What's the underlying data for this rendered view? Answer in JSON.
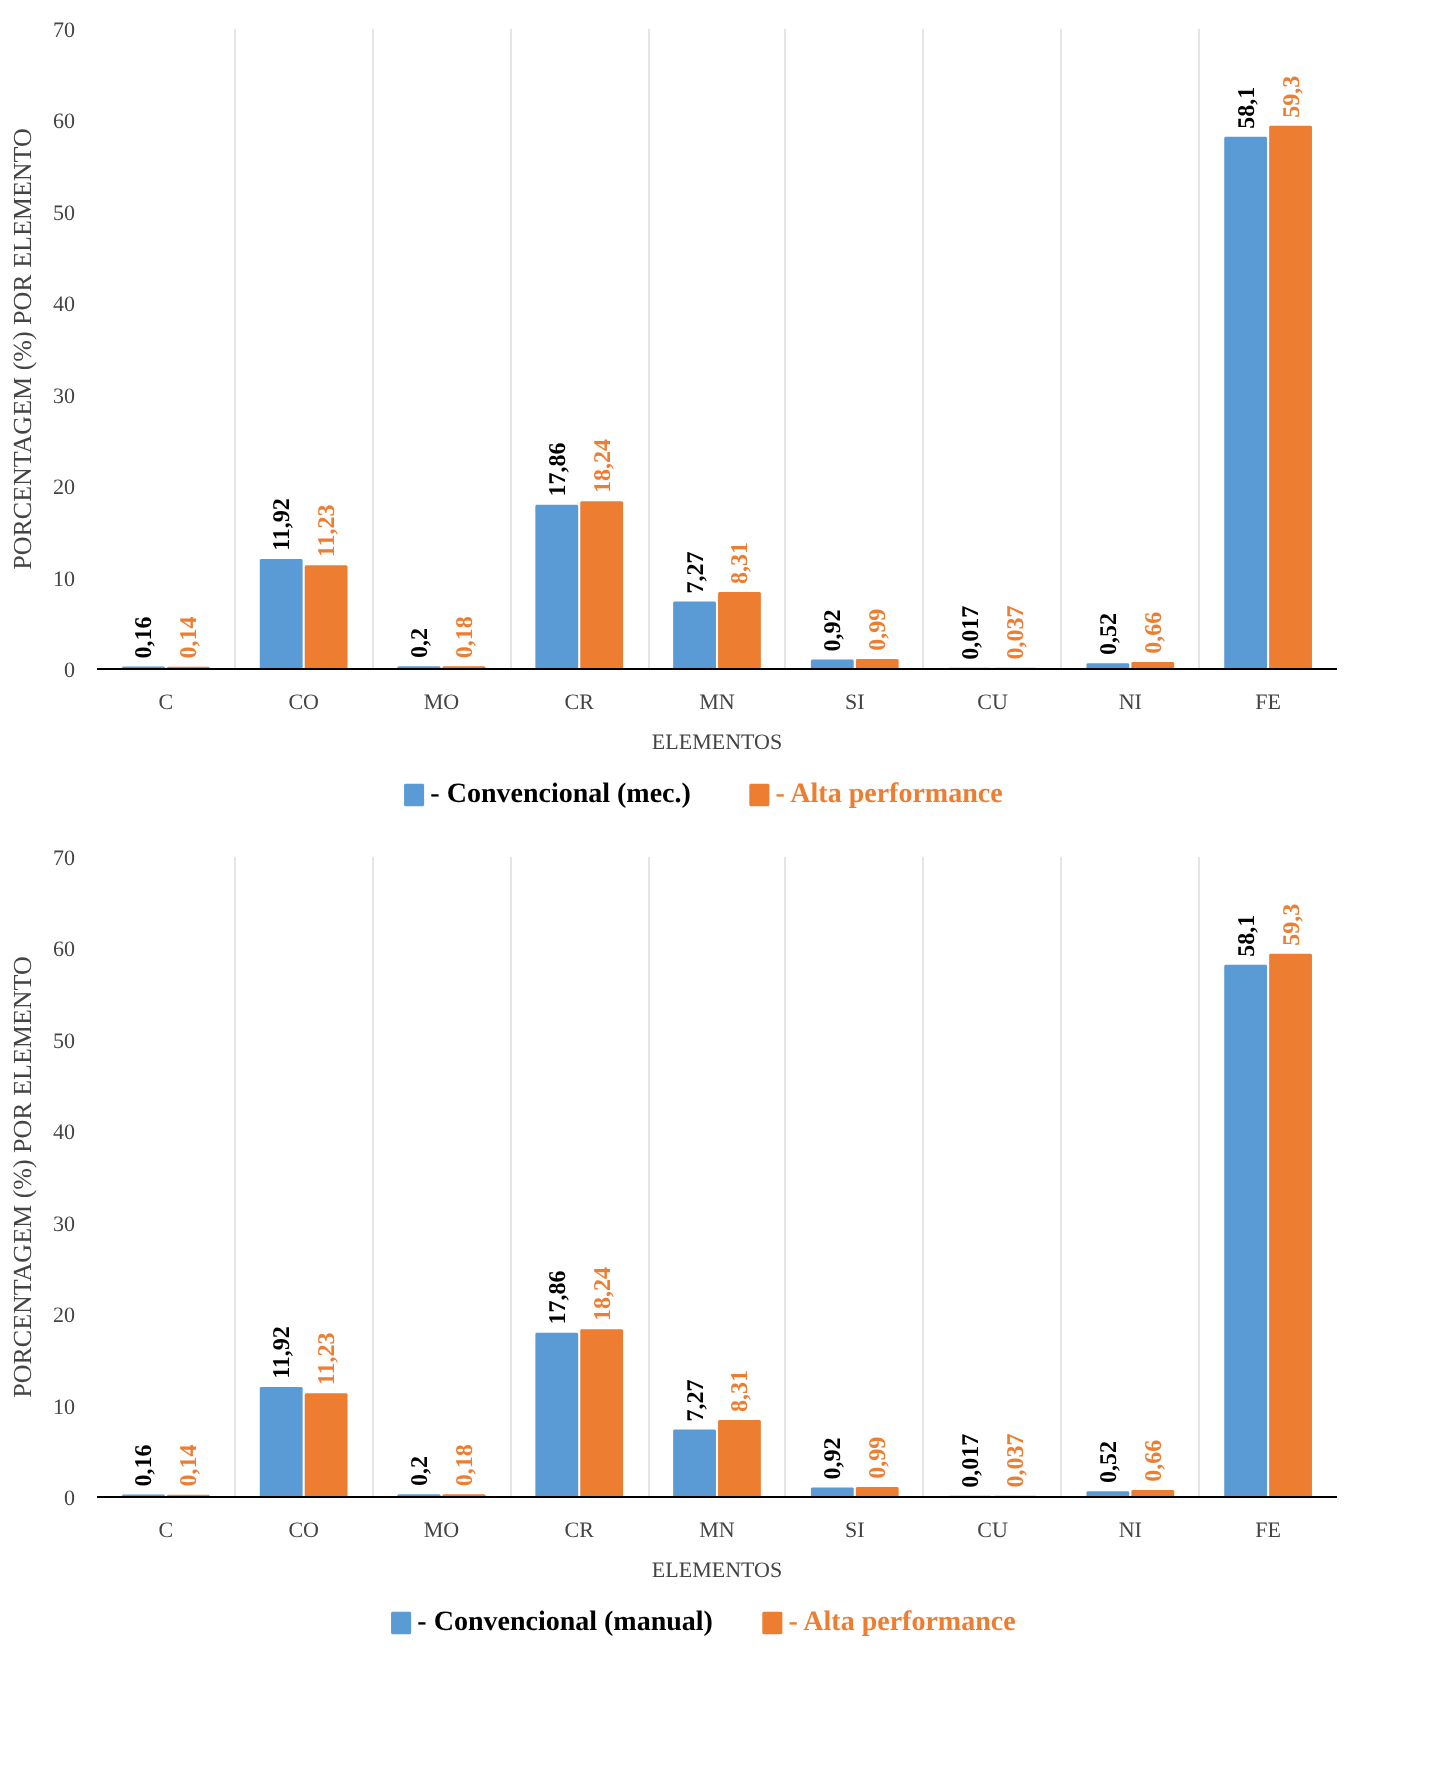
{
  "chart_data": [
    {
      "type": "bar",
      "xlabel": "ELEMENTOS",
      "ylabel": "PORCENTAGEM (%) POR ELEMENTO",
      "categories": [
        "C",
        "CO",
        "MO",
        "CR",
        "MN",
        "SI",
        "CU",
        "NI",
        "FE"
      ],
      "ylim": [
        0,
        70
      ],
      "yticks": [
        0,
        10,
        20,
        30,
        40,
        50,
        60,
        70
      ],
      "grid": "x",
      "legend": "bottom",
      "series": [
        {
          "name": "- Convencional (mec.)",
          "color": "#5b9bd5",
          "values": [
            0.16,
            11.92,
            0.2,
            17.86,
            7.27,
            0.92,
            0.017,
            0.52,
            58.1
          ],
          "value_labels": [
            "0,16",
            "11,92",
            "0,2",
            "17,86",
            "7,27",
            "0,92",
            "0,017",
            "0,52",
            "58,1"
          ]
        },
        {
          "name": "- Alta performance",
          "color": "#ed7d31",
          "values": [
            0.14,
            11.23,
            0.18,
            18.24,
            8.31,
            0.99,
            0.037,
            0.66,
            59.3
          ],
          "value_labels": [
            "0,14",
            "11,23",
            "0,18",
            "18,24",
            "8,31",
            "0,99",
            "0,037",
            "0,66",
            "59,3"
          ]
        }
      ]
    },
    {
      "type": "bar",
      "xlabel": "ELEMENTOS",
      "ylabel": "PORCENTAGEM (%) POR ELEMENTO",
      "categories": [
        "C",
        "CO",
        "MO",
        "CR",
        "MN",
        "SI",
        "CU",
        "NI",
        "FE"
      ],
      "ylim": [
        0,
        70
      ],
      "yticks": [
        0,
        10,
        20,
        30,
        40,
        50,
        60,
        70
      ],
      "grid": "x",
      "legend": "bottom",
      "series": [
        {
          "name": "- Convencional (manual)",
          "color": "#5b9bd5",
          "values": [
            0.16,
            11.92,
            0.2,
            17.86,
            7.27,
            0.92,
            0.017,
            0.52,
            58.1
          ],
          "value_labels": [
            "0,16",
            "11,92",
            "0,2",
            "17,86",
            "7,27",
            "0,92",
            "0,017",
            "0,52",
            "58,1"
          ]
        },
        {
          "name": "- Alta performance",
          "color": "#ed7d31",
          "values": [
            0.14,
            11.23,
            0.18,
            18.24,
            8.31,
            0.99,
            0.037,
            0.66,
            59.3
          ],
          "value_labels": [
            "0,14",
            "11,23",
            "0,18",
            "18,24",
            "8,31",
            "0,99",
            "0,037",
            "0,66",
            "59,3"
          ]
        }
      ]
    }
  ]
}
